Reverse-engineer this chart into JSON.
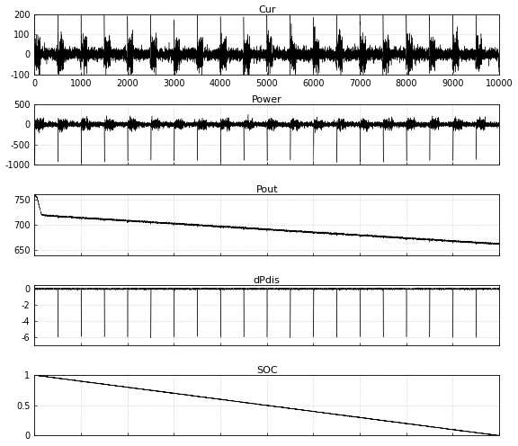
{
  "title1": "Cur",
  "title2": "Power",
  "title3": "Pout",
  "title4": "dPdis",
  "title5": "SOC",
  "xlim": [
    0,
    10000
  ],
  "cur_ylim": [
    -100,
    200
  ],
  "cur_yticks": [
    -100,
    0,
    100,
    200
  ],
  "power_ylim": [
    -1000,
    500
  ],
  "power_yticks": [
    -1000,
    -500,
    0,
    500
  ],
  "pout_ylim": [
    640,
    760
  ],
  "pout_yticks": [
    650,
    700,
    750
  ],
  "dpdis_ylim": [
    -7,
    0.5
  ],
  "dpdis_yticks": [
    -6,
    -4,
    -2,
    0
  ],
  "soc_ylim": [
    0,
    1
  ],
  "soc_yticks": [
    0,
    0.5,
    1
  ],
  "xticks": [
    0,
    1000,
    2000,
    3000,
    4000,
    5000,
    6000,
    7000,
    8000,
    9000,
    10000
  ],
  "n_points": 10000,
  "grid_color": "#bbbbbb",
  "line_color": "#000000",
  "bg_color": "#ffffff",
  "figsize": [
    5.76,
    4.96
  ],
  "dpi": 100
}
